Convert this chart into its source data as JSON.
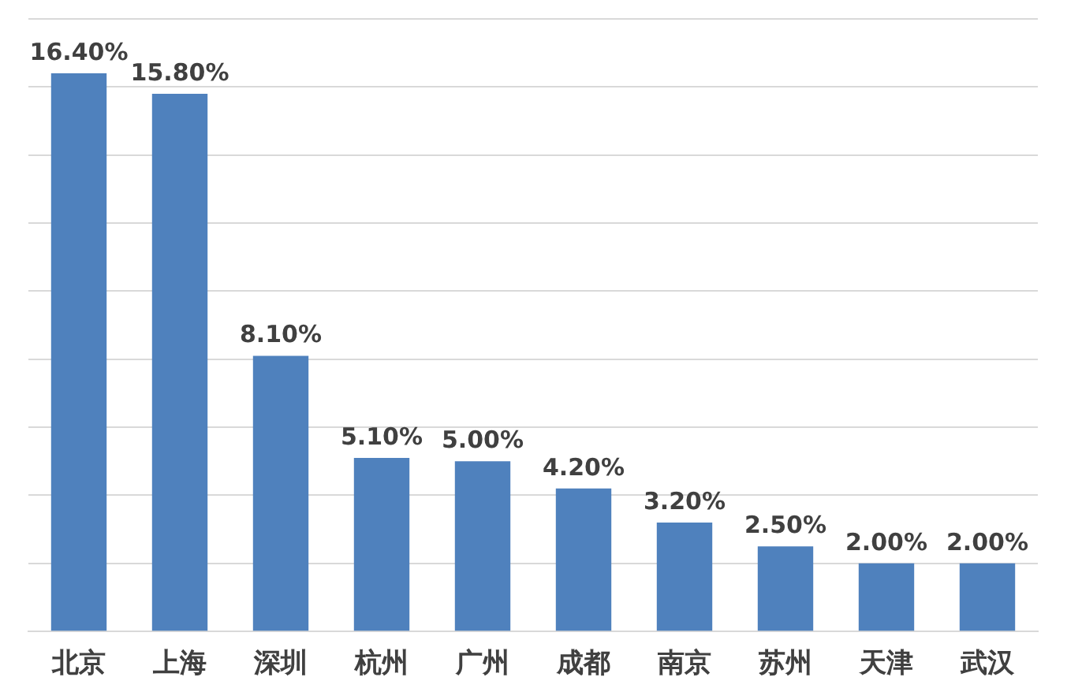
{
  "chart_data": {
    "type": "bar",
    "categories": [
      "北京",
      "上海",
      "深圳",
      "杭州",
      "广州",
      "成都",
      "南京",
      "苏州",
      "天津",
      "武汉"
    ],
    "values": [
      16.4,
      15.8,
      8.1,
      5.1,
      5.0,
      4.2,
      3.2,
      2.5,
      2.0,
      2.0
    ],
    "value_labels": [
      "16.40%",
      "15.80%",
      "8.10%",
      "5.10%",
      "5.00%",
      "4.20%",
      "3.20%",
      "2.50%",
      "2.00%",
      "2.00%"
    ],
    "color": "#4f81bd",
    "ylim": [
      0,
      18
    ],
    "yticks": [
      {
        "value": 0,
        "label": null
      },
      {
        "value": 2,
        "label": null
      },
      {
        "value": 4,
        "label": null
      },
      {
        "value": 6,
        "label": null
      },
      {
        "value": 8,
        "label": null
      },
      {
        "value": 10,
        "label": null
      },
      {
        "value": 12,
        "label": null
      },
      {
        "value": 14,
        "label": null
      },
      {
        "value": 16,
        "label": null
      },
      {
        "value": 18,
        "label": null
      }
    ],
    "grid": "y",
    "tick_labels": "x",
    "legend": false
  }
}
